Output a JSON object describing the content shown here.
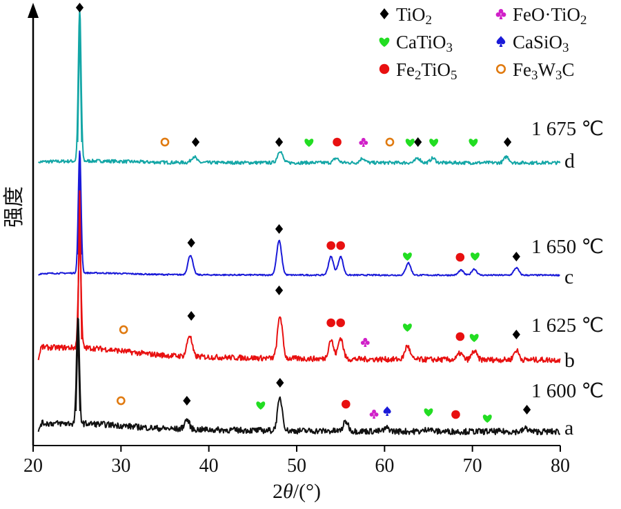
{
  "chart_data": {
    "type": "line",
    "xlabel_main": "2",
    "xlabel_italic": "θ",
    "xlabel_tail": "/(°)",
    "ylabel": "强度",
    "xlim": [
      20,
      80
    ],
    "x_ticks": [
      "20",
      "30",
      "40",
      "50",
      "60",
      "70",
      "80"
    ],
    "legend": [
      {
        "key": "tio2",
        "label_parts": [
          "TiO",
          {
            "sub": "2"
          }
        ],
        "symbol": "diamond",
        "color": "#000000"
      },
      {
        "key": "feotio2",
        "label_parts": [
          "FeO·TiO",
          {
            "sub": "2"
          }
        ],
        "symbol": "club",
        "color": "#d020c8"
      },
      {
        "key": "catio3",
        "label_parts": [
          "CaTiO",
          {
            "sub": "3"
          }
        ],
        "symbol": "heart",
        "color": "#22dd22"
      },
      {
        "key": "casio3",
        "label_parts": [
          "CaSiO",
          {
            "sub": "3"
          }
        ],
        "symbol": "spade",
        "color": "#1a1ad8"
      },
      {
        "key": "fe2tio5",
        "label_parts": [
          "Fe",
          {
            "sub": "2"
          },
          "TiO",
          {
            "sub": "5"
          }
        ],
        "symbol": "circle",
        "color": "#e81010"
      },
      {
        "key": "fe3w3c",
        "label_parts": [
          "Fe",
          {
            "sub": "3"
          },
          "W",
          {
            "sub": "3"
          },
          "C"
        ],
        "symbol": "ring",
        "color": "#e07a10"
      }
    ],
    "series": [
      {
        "letter": "d",
        "temperature": "1 675 ℃",
        "color": "#13a6a6",
        "peaks": [
          [
            25.3,
            100
          ],
          [
            38.3,
            4
          ],
          [
            48.1,
            8
          ],
          [
            54.5,
            3
          ],
          [
            57.5,
            3
          ],
          [
            63.8,
            3
          ],
          [
            65.5,
            3
          ],
          [
            73.9,
            4
          ]
        ],
        "markers": [
          [
            "tio2",
            25.3
          ],
          [
            "fe3w3c",
            35.0
          ],
          [
            "tio2",
            38.5
          ],
          [
            "tio2",
            48.0
          ],
          [
            "catio3",
            51.4
          ],
          [
            "fe2tio5",
            54.6
          ],
          [
            "feotio2",
            57.6
          ],
          [
            "fe3w3c",
            60.6
          ],
          [
            "catio3",
            62.9
          ],
          [
            "tio2",
            63.8
          ],
          [
            "catio3",
            65.6
          ],
          [
            "catio3",
            70.1
          ],
          [
            "tio2",
            74.0
          ]
        ]
      },
      {
        "letter": "c",
        "temperature": "1 650 ℃",
        "color": "#1a1ad8",
        "peaks": [
          [
            25.3,
            100
          ],
          [
            37.9,
            16
          ],
          [
            48.0,
            28
          ],
          [
            53.9,
            15
          ],
          [
            55.0,
            15
          ],
          [
            62.7,
            10
          ],
          [
            68.7,
            4
          ],
          [
            70.2,
            5
          ],
          [
            75.0,
            6
          ]
        ],
        "markers": [
          [
            "tio2",
            38.0
          ],
          [
            "tio2",
            48.0
          ],
          [
            "fe2tio5",
            53.9
          ],
          [
            "fe2tio5",
            55.0
          ],
          [
            "catio3",
            62.6
          ],
          [
            "fe2tio5",
            68.6
          ],
          [
            "catio3",
            70.3
          ],
          [
            "tio2",
            75.0
          ]
        ]
      },
      {
        "letter": "b",
        "temperature": "1 625 ℃",
        "color": "#e81010",
        "peaks": [
          [
            25.3,
            100
          ],
          [
            37.8,
            20
          ],
          [
            48.1,
            40
          ],
          [
            53.9,
            18
          ],
          [
            55.0,
            20
          ],
          [
            62.6,
            13
          ],
          [
            68.6,
            6
          ],
          [
            70.2,
            8
          ],
          [
            75.0,
            9
          ]
        ],
        "markers": [
          [
            "fe3w3c",
            30.3
          ],
          [
            "tio2",
            38.0
          ],
          [
            "tio2",
            48.0
          ],
          [
            "fe2tio5",
            53.9
          ],
          [
            "fe2tio5",
            55.0
          ],
          [
            "feotio2",
            57.8
          ],
          [
            "catio3",
            62.6
          ],
          [
            "fe2tio5",
            68.6
          ],
          [
            "catio3",
            70.2
          ],
          [
            "tio2",
            75.0
          ]
        ]
      },
      {
        "letter": "a",
        "temperature": "1 600 ℃",
        "color": "#111111",
        "peaks": [
          [
            25.1,
            100
          ],
          [
            37.5,
            9
          ],
          [
            48.1,
            30
          ],
          [
            55.6,
            9
          ],
          [
            60.3,
            3
          ],
          [
            65.0,
            3
          ],
          [
            76.1,
            3
          ]
        ],
        "markers": [
          [
            "fe3w3c",
            30.0
          ],
          [
            "tio2",
            37.5
          ],
          [
            "catio3",
            45.9
          ],
          [
            "tio2",
            48.1
          ],
          [
            "fe2tio5",
            55.6
          ],
          [
            "feotio2",
            58.8
          ],
          [
            "casio3",
            60.3
          ],
          [
            "catio3",
            65.0
          ],
          [
            "fe2tio5",
            68.1
          ],
          [
            "catio3",
            71.7
          ],
          [
            "tio2",
            76.2
          ]
        ]
      }
    ]
  }
}
